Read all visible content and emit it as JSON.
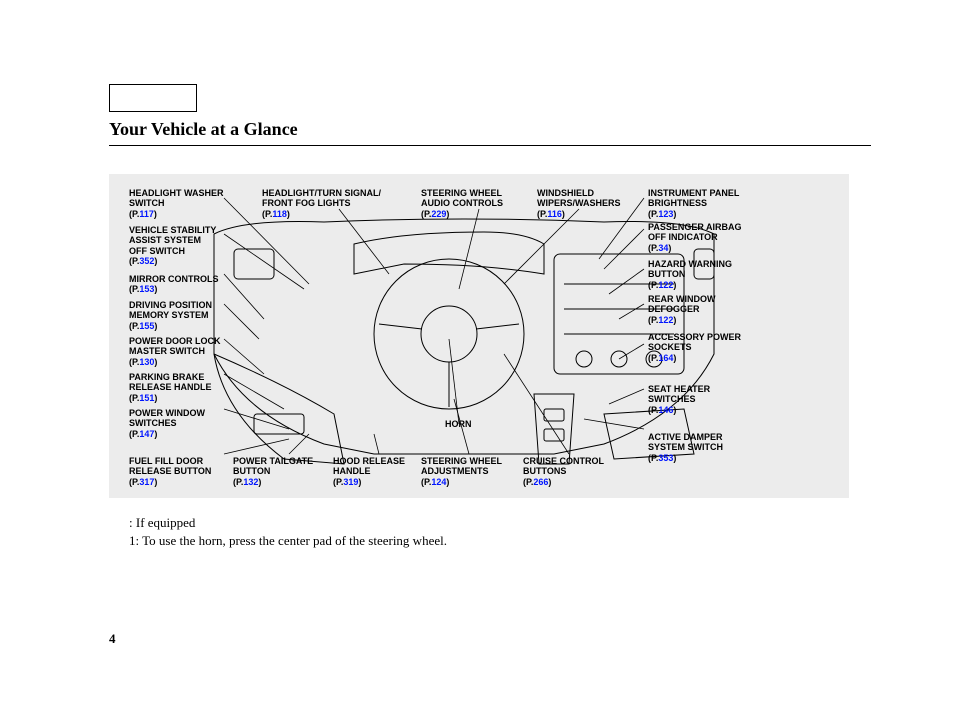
{
  "title": "Your Vehicle at a Glance",
  "pageNumber": "4",
  "footnote1": ":   If equipped",
  "footnote2": "1: To use the horn, press the center pad of the steering wheel.",
  "hornLabel": "HORN",
  "colors": {
    "background": "#ffffff",
    "diagramBg": "#ececec",
    "text": "#000000",
    "link": "#0015ff"
  },
  "callouts": {
    "headlightWasher": {
      "label": "HEADLIGHT WASHER\nSWITCH",
      "page": "117"
    },
    "vehicleStability": {
      "label": "VEHICLE STABILITY\nASSIST SYSTEM\nOFF SWITCH",
      "page": "352"
    },
    "mirrorControls": {
      "label": "MIRROR CONTROLS",
      "page": "153"
    },
    "drivingPosition": {
      "label": "DRIVING POSITION\nMEMORY SYSTEM",
      "page": "155"
    },
    "powerDoorLock": {
      "label": "POWER DOOR LOCK\nMASTER SWITCH",
      "page": "130"
    },
    "parkingBrake": {
      "label": "PARKING BRAKE\nRELEASE HANDLE",
      "page": "151"
    },
    "powerWindow": {
      "label": "POWER WINDOW\nSWITCHES",
      "page": "147"
    },
    "fuelFill": {
      "label": "FUEL FILL DOOR\nRELEASE BUTTON",
      "page": "317"
    },
    "headlightTurn": {
      "label": "HEADLIGHT/TURN SIGNAL/\nFRONT FOG LIGHTS",
      "page": "118"
    },
    "steeringAudio": {
      "label": "STEERING WHEEL\nAUDIO CONTROLS",
      "page": "229"
    },
    "windshield": {
      "label": "WINDSHIELD\nWIPERS/WASHERS",
      "page": "116"
    },
    "instrumentPanel": {
      "label": "INSTRUMENT PANEL\nBRIGHTNESS",
      "page": "123"
    },
    "passengerAirbag": {
      "label": "PASSENGER AIRBAG\nOFF INDICATOR",
      "page": "34"
    },
    "hazardWarning": {
      "label": "HAZARD WARNING\nBUTTON",
      "page": "122"
    },
    "rearDefogger": {
      "label": "REAR WINDOW\nDEFOGGER",
      "page": "122"
    },
    "accessoryPower": {
      "label": "ACCESSORY POWER\nSOCKETS",
      "page": "164"
    },
    "seatHeater": {
      "label": "SEAT HEATER\nSWITCHES",
      "page": "146"
    },
    "activeDamper": {
      "label": "ACTIVE DAMPER\nSYSTEM SWITCH",
      "page": "353"
    },
    "powerTailgate": {
      "label": "POWER TAILGATE\nBUTTON",
      "page": "132"
    },
    "hoodRelease": {
      "label": "HOOD RELEASE\nHANDLE",
      "page": "319"
    },
    "steeringAdjust": {
      "label": "STEERING WHEEL\nADJUSTMENTS",
      "page": "124"
    },
    "cruiseControl": {
      "label": "CRUISE CONTROL\nBUTTONS",
      "page": "266"
    }
  }
}
